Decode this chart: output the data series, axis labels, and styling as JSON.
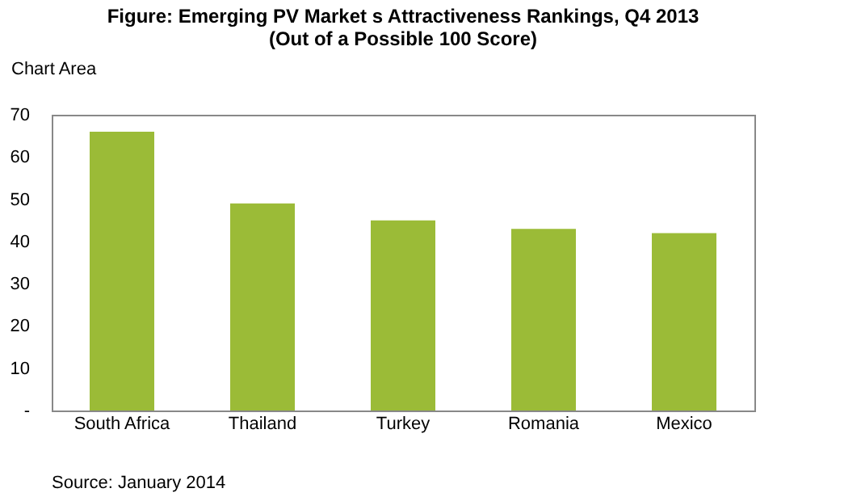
{
  "chart_data": {
    "type": "bar",
    "title": [
      "Figure: Emerging PV Market s Attractiveness Rankings, Q4 2013",
      "(Out of a Possible 100 Score)"
    ],
    "categories": [
      "South Africa",
      "Thailand",
      "Turkey",
      "Romania",
      "Mexico"
    ],
    "values": [
      66,
      49,
      45,
      43,
      42
    ],
    "color": "#9bbb37",
    "ylim": [
      0,
      70
    ],
    "yticks": [
      {
        "value": 0,
        "label": "-"
      },
      10,
      20,
      30,
      40,
      50,
      60,
      70
    ],
    "grid": false,
    "annotations": [
      "Chart Area",
      "Source: January 2014"
    ]
  }
}
